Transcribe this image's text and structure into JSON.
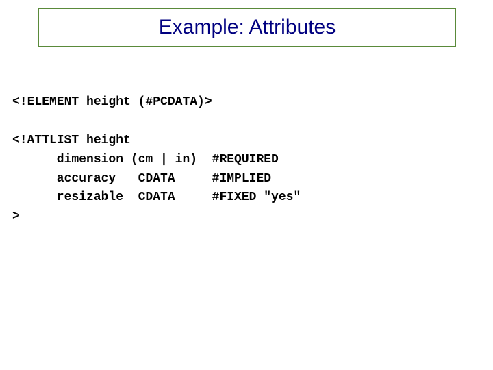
{
  "title": "Example: Attributes",
  "code": {
    "line1": "<!ELEMENT height (#PCDATA)>",
    "line2": "",
    "line3": "<!ATTLIST height",
    "line4": "      dimension (cm | in)  #REQUIRED",
    "line5": "      accuracy   CDATA     #IMPLIED",
    "line6": "      resizable  CDATA     #FIXED \"yes\"",
    "line7": ">"
  },
  "styling": {
    "title_color": "#000080",
    "title_fontsize": 30,
    "title_border_color": "#5a8a3a",
    "code_fontsize": 18,
    "code_color": "#000000",
    "code_font": "Courier New",
    "background_color": "#ffffff"
  }
}
